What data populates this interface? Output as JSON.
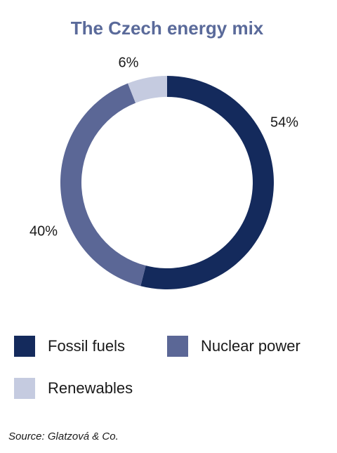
{
  "chart_data": {
    "type": "donut",
    "title": "The Czech energy mix",
    "categories": [
      "Fossil fuels",
      "Nuclear power",
      "Renewables"
    ],
    "values": [
      54,
      40,
      6
    ],
    "value_labels": [
      "54%",
      "40%",
      "6%"
    ],
    "colors": [
      "#142a5c",
      "#5b6796",
      "#c5cbe0"
    ],
    "source": "Source: Glatzová & Co."
  }
}
